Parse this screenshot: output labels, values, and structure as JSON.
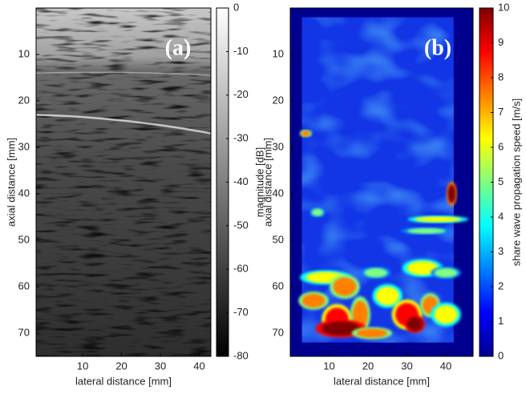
{
  "chart_data": [
    {
      "type": "heatmap",
      "annotation": "(a)",
      "colormap": "gray",
      "xlabel": "lateral distance [mm]",
      "ylabel": "axial distance [mm]",
      "xlim": [
        -2,
        43
      ],
      "ylim": [
        75,
        0
      ],
      "xticks": [
        10,
        20,
        30,
        40
      ],
      "yticks": [
        10,
        20,
        30,
        40,
        50,
        60,
        70
      ],
      "colorbar_label": "magnitude [dB]",
      "clim": [
        -80,
        0
      ],
      "cticks": [
        0,
        -10,
        -20,
        -30,
        -40,
        -50,
        -60,
        -70,
        -80
      ]
    },
    {
      "type": "heatmap",
      "annotation": "(b)",
      "colormap": "jet",
      "xlabel": "lateral distance [mm]",
      "ylabel": "axial distance [mm]",
      "xlim": [
        0,
        47
      ],
      "ylim": [
        75,
        0
      ],
      "xticks": [
        10,
        20,
        30,
        40
      ],
      "yticks": [
        10,
        20,
        30,
        40,
        50,
        60,
        70
      ],
      "colorbar_label": "share wave propagation speed [m/s]",
      "clim": [
        0,
        10
      ],
      "cticks": [
        0,
        1,
        2,
        3,
        4,
        5,
        6,
        7,
        8,
        9,
        10
      ]
    }
  ]
}
